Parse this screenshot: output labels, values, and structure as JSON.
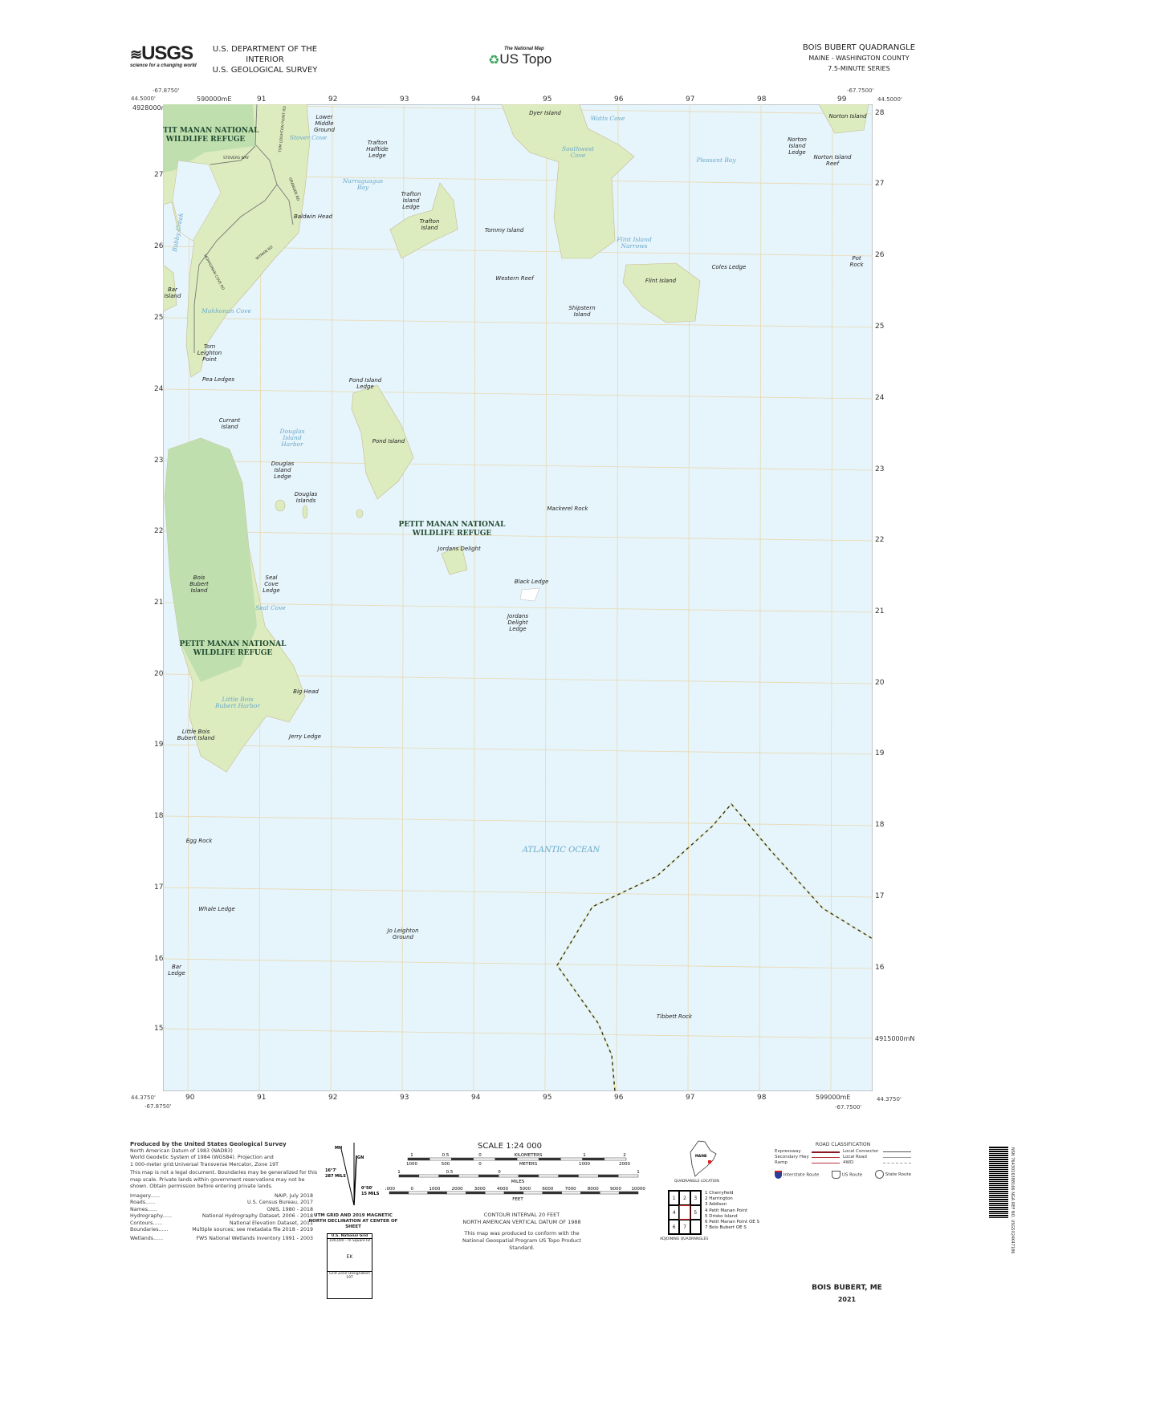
{
  "header": {
    "agency_logo": "USGS",
    "agency_tagline": "science for a changing world",
    "dept_line1": "U.S. DEPARTMENT OF THE INTERIOR",
    "dept_line2": "U.S. GEOLOGICAL SURVEY",
    "product_small": "The National Map",
    "product": "US Topo",
    "quad_title": "BOIS BUBERT QUADRANGLE",
    "state_county": "MAINE - WASHINGTON COUNTY",
    "series": "7.5-MINUTE SERIES"
  },
  "corners": {
    "nw_lon": "-67.8750'",
    "nw_lat": "44.5000'",
    "ne_lon": "-67.7500'",
    "ne_lat": "44.5000'",
    "sw_lon": "-67.8750'",
    "sw_lat": "44.3750'",
    "se_lon": "-67.7500'",
    "se_lat": "44.3750'"
  },
  "grid": {
    "top_first": "590000mE",
    "eastings": [
      "90",
      "91",
      "92",
      "93",
      "94",
      "95",
      "96",
      "97",
      "98",
      "99"
    ],
    "bottom_last": "599000mE",
    "northings": [
      "28",
      "27",
      "26",
      "25",
      "24",
      "23",
      "22",
      "21",
      "20",
      "19",
      "18",
      "17",
      "16",
      "15"
    ],
    "north_first": "4928000mN",
    "south_last": "4915000mN"
  },
  "map_labels": [
    {
      "text": "Lower Middle Ground",
      "kind": "feature"
    },
    {
      "text": "PETIT MANAN NATIONAL WILDLIFE REFUGE",
      "kind": "refuge"
    },
    {
      "text": "Stover Cove",
      "kind": "water"
    },
    {
      "text": "Trafton Halftide Ledge",
      "kind": "feature"
    },
    {
      "text": "Narraguagus Bay",
      "kind": "water"
    },
    {
      "text": "Trafton Island Ledge",
      "kind": "feature"
    },
    {
      "text": "Baldwin Head",
      "kind": "feature"
    },
    {
      "text": "Trafton Island",
      "kind": "feature"
    },
    {
      "text": "Tommy Island",
      "kind": "feature"
    },
    {
      "text": "Dyer Island",
      "kind": "feature"
    },
    {
      "text": "Watts Cove",
      "kind": "water"
    },
    {
      "text": "Southwest Cove",
      "kind": "water"
    },
    {
      "text": "Pleasant Bay",
      "kind": "water"
    },
    {
      "text": "Norton Island",
      "kind": "feature"
    },
    {
      "text": "Norton Island Ledge",
      "kind": "feature"
    },
    {
      "text": "Norton Island Reef",
      "kind": "feature"
    },
    {
      "text": "Flint Island Narrows",
      "kind": "water"
    },
    {
      "text": "Coles Ledge",
      "kind": "feature"
    },
    {
      "text": "Pot Rock",
      "kind": "feature"
    },
    {
      "text": "Flint Island",
      "kind": "feature"
    },
    {
      "text": "Western Reef",
      "kind": "feature"
    },
    {
      "text": "Shipstern Island",
      "kind": "feature"
    },
    {
      "text": "Bar Island",
      "kind": "feature"
    },
    {
      "text": "Mohhonan Cove",
      "kind": "water"
    },
    {
      "text": "Tom Leighton Point",
      "kind": "feature"
    },
    {
      "text": "Pea Ledges",
      "kind": "feature"
    },
    {
      "text": "Pond Island Ledge",
      "kind": "feature"
    },
    {
      "text": "Currant Island",
      "kind": "feature"
    },
    {
      "text": "Douglas Island Harbor",
      "kind": "water"
    },
    {
      "text": "Pond Island",
      "kind": "feature"
    },
    {
      "text": "Douglas Island Ledge",
      "kind": "feature"
    },
    {
      "text": "Douglas Islands",
      "kind": "feature"
    },
    {
      "text": "Mackerel Rock",
      "kind": "feature"
    },
    {
      "text": "PETIT MANAN NATIONAL WILDLIFE REFUGE",
      "kind": "refuge"
    },
    {
      "text": "Jordans Delight",
      "kind": "feature"
    },
    {
      "text": "Bois Bubert Island",
      "kind": "feature"
    },
    {
      "text": "Seal Cove Ledge",
      "kind": "feature"
    },
    {
      "text": "Black Ledge",
      "kind": "feature"
    },
    {
      "text": "Seal Cove",
      "kind": "water"
    },
    {
      "text": "Jordans Delight Ledge",
      "kind": "feature"
    },
    {
      "text": "PETIT MANAN NATIONAL WILDLIFE REFUGE",
      "kind": "refuge"
    },
    {
      "text": "Big Head",
      "kind": "feature"
    },
    {
      "text": "Little Bois Bubert Harbor",
      "kind": "water"
    },
    {
      "text": "Little Bois Bubert Island",
      "kind": "feature"
    },
    {
      "text": "Jerry Ledge",
      "kind": "feature"
    },
    {
      "text": "ATLANTIC OCEAN",
      "kind": "water"
    },
    {
      "text": "Egg Rock",
      "kind": "feature"
    },
    {
      "text": "Whale Ledge",
      "kind": "feature"
    },
    {
      "text": "Jo Leighton Ground",
      "kind": "feature"
    },
    {
      "text": "Bar Ledge",
      "kind": "feature"
    },
    {
      "text": "Tibbett Rock",
      "kind": "feature"
    },
    {
      "text": "Bobby Creek",
      "kind": "water"
    }
  ],
  "roads": [
    "STOVERS WAY",
    "TOM LEIGHTON POINT RD",
    "GRANGER RD",
    "WYMAN RD",
    "MOHHONAN COVE RD"
  ],
  "colors": {
    "water": "#e6f4fb",
    "land": "#dcecbf",
    "refuge": "#b9dcab",
    "grid": "#e8d9b0",
    "boundary": "#2b2b10",
    "road_red": "#b8323a"
  },
  "credits": {
    "title": "Produced by the United States Geological Survey",
    "lines": [
      "North American Datum of 1983 (NAD83)",
      "World Geodetic System of 1984 (WGS84). Projection and",
      "1 000-meter grid:Universal Transverse Mercator, Zone 19T"
    ],
    "disclaimer": "This map is not a legal document. Boundaries may be generalized for this map scale. Private lands within government reservations may not be shown. Obtain permission before entering private lands.",
    "sources": [
      {
        "k": "Imagery",
        "v": "NAIP, July 2018"
      },
      {
        "k": "Roads",
        "v": "U.S. Census Bureau, 2017"
      },
      {
        "k": "Names",
        "v": "GNIS, 1980 - 2018"
      },
      {
        "k": "Hydrography",
        "v": "National Hydrography Dataset, 2006 - 2018"
      },
      {
        "k": "Contours",
        "v": "National Elevation Dataset, 2011"
      },
      {
        "k": "Boundaries",
        "v": "Multiple sources; see metadata file 2018 - 2019"
      },
      {
        "k": "Wetlands",
        "v": "FWS National Wetlands Inventory 1991 - 2003"
      }
    ]
  },
  "declination": {
    "mn": "MN",
    "gn": "GN",
    "mn_angle": "16°7'",
    "mn_mils": "287 MILS",
    "gn_angle": "0°50'",
    "gn_mils": "15 MILS",
    "caption": "UTM GRID AND 2019 MAGNETIC NORTH DECLINATION AT CENTER OF SHEET",
    "grid_box_title": "U.S. National Grid",
    "grid_box_sub": "100,000 - m Square ID",
    "grid_square": "EK",
    "grid_zone_label": "Grid Zone Designation",
    "grid_zone": "19T"
  },
  "scale": {
    "title": "SCALE 1:24 000",
    "km_ticks": [
      "1",
      "0.5",
      "0",
      "KILOMETERS",
      "1",
      "2"
    ],
    "m_ticks": [
      "1000",
      "500",
      "0",
      "METERS",
      "1000",
      "2000"
    ],
    "mi_ticks": [
      "1",
      "0.5",
      "0",
      "1"
    ],
    "mi_label": "MILES",
    "ft_ticks": [
      "1000",
      "0",
      "1000",
      "2000",
      "3000",
      "4000",
      "5000",
      "6000",
      "7000",
      "8000",
      "9000",
      "10000"
    ],
    "ft_label": "FEET",
    "contour": "CONTOUR INTERVAL 20 FEET",
    "datum": "NORTH AMERICAN VERTICAL DATUM OF 1988",
    "standard1": "This map was produced to conform with the",
    "standard2": "National Geospatial Program US Topo Product Standard."
  },
  "location": {
    "state": "MAINE",
    "caption": "QUADRANGLE LOCATION"
  },
  "adjoining": {
    "cells": [
      "1",
      "2",
      "3",
      "4",
      "",
      "5",
      "6",
      "7",
      ""
    ],
    "names": [
      "1 Cherryfield",
      "2 Harrington",
      "3 Addison",
      "4 Petit Manan Point",
      "5 Drisko Island",
      "6 Petit Manan Point OE S",
      "7 Bois Bubert OE S"
    ],
    "caption": "ADJOINING QUADRANGLES"
  },
  "road_legend": {
    "title": "ROAD CLASSIFICATION",
    "items": [
      "Expressway",
      "Secondary Hwy",
      "Ramp",
      "Local Connector",
      "Local Road",
      "4WD"
    ],
    "routes": [
      "Interstate Route",
      "US Route",
      "State Route"
    ]
  },
  "footer": {
    "name": "BOIS BUBERT, ME",
    "year": "2021",
    "barcode_text": "NSN 7643016388166  NGA REF NO. USGSX24K47186"
  }
}
